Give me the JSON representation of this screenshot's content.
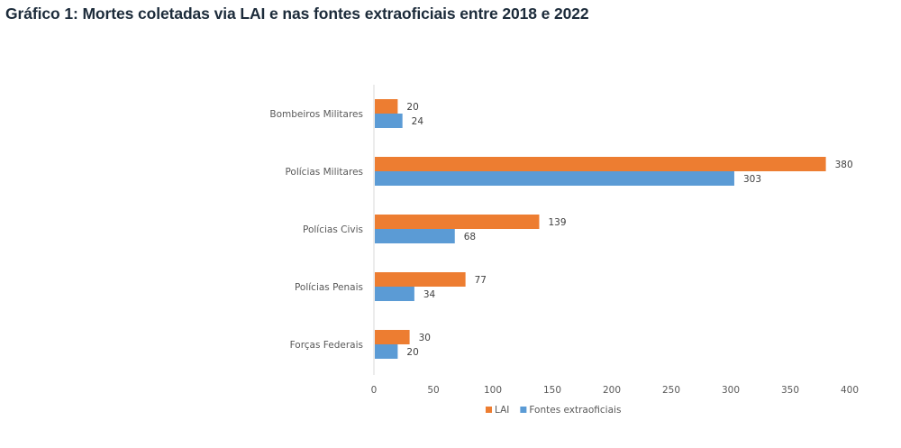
{
  "page": {
    "title": "Gráfico 1: Mortes coletadas via LAI e nas fontes extraoficiais entre 2018 e 2022"
  },
  "chart_data": {
    "type": "bar",
    "orientation": "horizontal",
    "title": "Gráfico 1: Mortes coletadas via LAI e nas fontes extraoficiais entre 2018 e 2022",
    "categories": [
      "Bombeiros Militares",
      "Polícias Militares",
      "Polícias Civis",
      "Polícias Penais",
      "Forças Federais"
    ],
    "series": [
      {
        "name": "LAI",
        "color": "#ed7d31",
        "values": [
          20,
          380,
          139,
          77,
          30
        ]
      },
      {
        "name": "Fontes extraoficiais",
        "color": "#5b9bd5",
        "values": [
          24,
          303,
          68,
          34,
          20
        ]
      }
    ],
    "xlabel": "",
    "ylabel": "",
    "xlim": [
      0,
      400
    ],
    "xticks": [
      0,
      50,
      100,
      150,
      200,
      250,
      300,
      350,
      400
    ],
    "xtick_labels": [
      "0",
      "50",
      "100",
      "150",
      "200",
      "250",
      "300",
      "350",
      "400"
    ],
    "grid": false,
    "data_labels": true,
    "legend": {
      "position": "bottom",
      "entries": [
        "LAI",
        "Fontes extraoficiais"
      ]
    }
  }
}
